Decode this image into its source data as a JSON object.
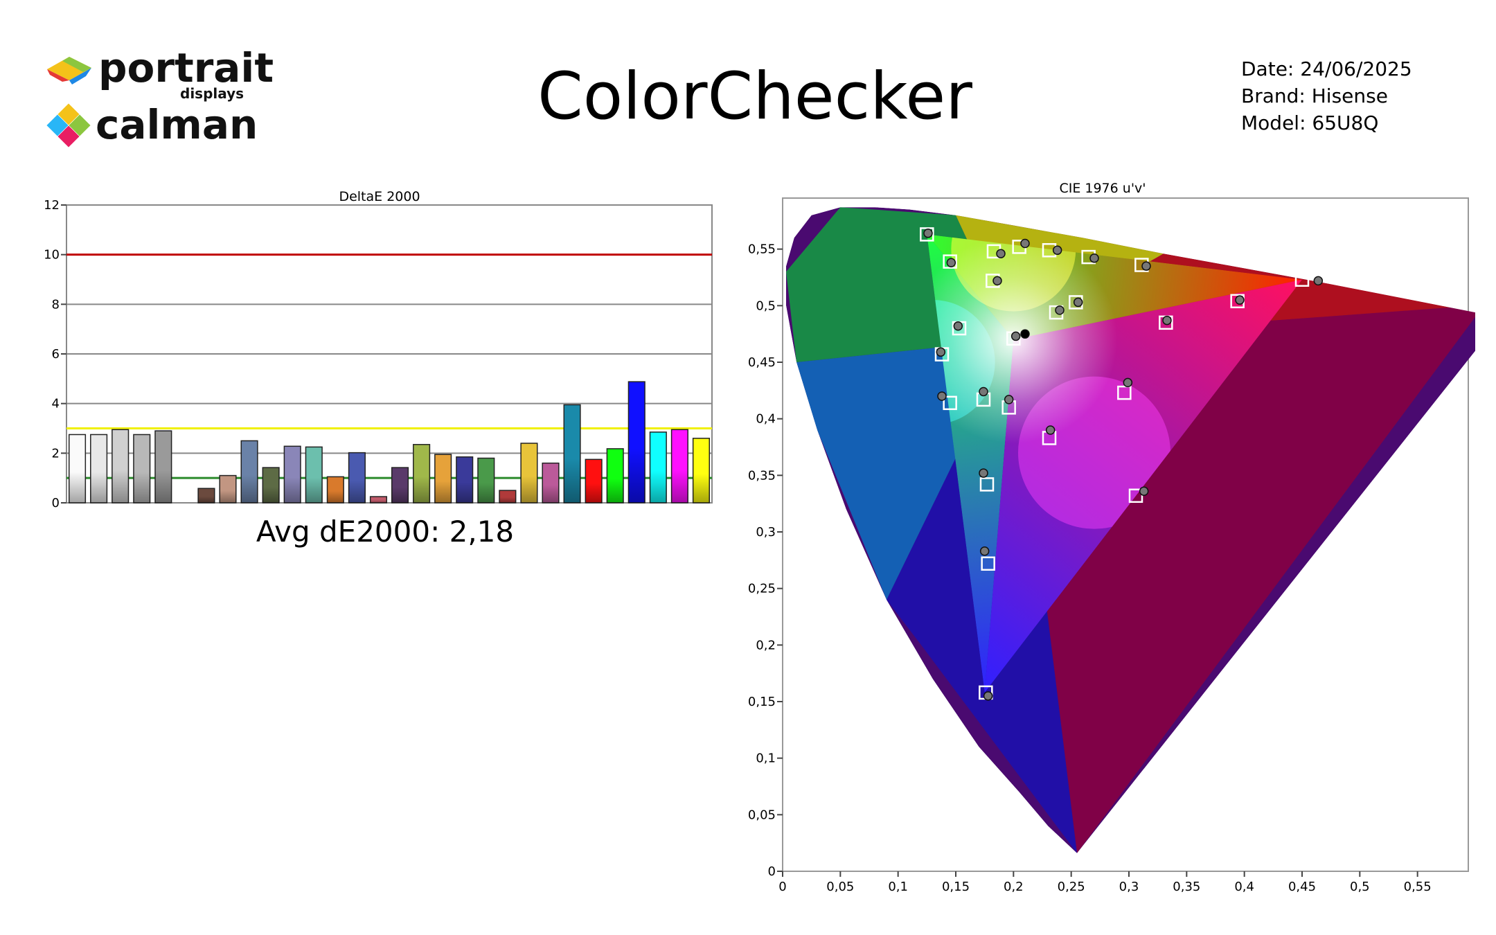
{
  "header": {
    "brand_line1": "portrait",
    "brand_line1_sub": "displays",
    "brand_line2": "calman",
    "title": "ColorChecker",
    "date": "Date: 24/06/2025",
    "brand": "Brand: Hisense",
    "model": "Model: 65U8Q"
  },
  "chart_data": [
    {
      "type": "bar",
      "title": "DeltaE 2000",
      "ylim": [
        0,
        12
      ],
      "yticks": [
        0,
        2,
        4,
        6,
        8,
        10,
        12
      ],
      "ytick_labels": [
        "0",
        "2",
        "4",
        "6",
        "8",
        "10",
        "12"
      ],
      "reference_lines": [
        {
          "value": 10,
          "color": "#c00000"
        },
        {
          "value": 3,
          "color": "#f0f000"
        },
        {
          "value": 1,
          "color": "#2a8a2a"
        }
      ],
      "summary": "Avg dE2000: 2,18",
      "values": [
        2.75,
        2.75,
        2.95,
        2.75,
        2.9,
        null,
        0.58,
        1.1,
        2.5,
        1.42,
        2.28,
        2.25,
        1.05,
        2.02,
        0.25,
        1.42,
        2.35,
        1.95,
        1.85,
        1.8,
        0.5,
        2.4,
        1.6,
        3.95,
        1.75,
        2.18,
        4.88,
        2.85,
        2.95,
        2.6
      ],
      "colors": [
        "#fafafa",
        "#e8e8e8",
        "#d0d0d0",
        "#b8b8b8",
        "#9a9a9a",
        null,
        "#6b4a3e",
        "#c29682",
        "#6a82a8",
        "#5d6b45",
        "#8a86b8",
        "#6cbfad",
        "#d97a2c",
        "#4a5ab0",
        "#c05a6a",
        "#5a3a6a",
        "#a0b84a",
        "#e6a23a",
        "#3a3a9a",
        "#4a9a4a",
        "#b03a3a",
        "#e8c43a",
        "#bb5a9a",
        "#1a8aaa",
        "#ff1010",
        "#10ff10",
        "#1010ff",
        "#10ffff",
        "#ff10ff",
        "#ffff10"
      ]
    },
    {
      "type": "scatter",
      "title": "CIE 1976 u'v'",
      "xlim": [
        0,
        0.6
      ],
      "ylim": [
        0,
        0.6
      ],
      "xticks": [
        0,
        0.05,
        0.1,
        0.15,
        0.2,
        0.25,
        0.3,
        0.35,
        0.4,
        0.45,
        0.5,
        0.55
      ],
      "xtick_labels": [
        "0",
        "0,05",
        "0,1",
        "0,15",
        "0,2",
        "0,25",
        "0,3",
        "0,35",
        "0,4",
        "0,45",
        "0,5",
        "0,55"
      ],
      "yticks": [
        0,
        0.05,
        0.1,
        0.15,
        0.2,
        0.25,
        0.3,
        0.35,
        0.4,
        0.45,
        0.5,
        0.55
      ],
      "ytick_labels": [
        "0",
        "0,05",
        "0,1",
        "0,15",
        "0,2",
        "0,25",
        "0,3",
        "0,35",
        "0,4",
        "0,45",
        "0,5",
        "0,55"
      ],
      "gamut": {
        "red": [
          0.45,
          0.523
        ],
        "green": [
          0.125,
          0.563
        ],
        "blue": [
          0.175,
          0.158
        ]
      },
      "targets": [
        [
          0.125,
          0.563
        ],
        [
          0.145,
          0.539
        ],
        [
          0.183,
          0.548
        ],
        [
          0.205,
          0.552
        ],
        [
          0.231,
          0.549
        ],
        [
          0.265,
          0.543
        ],
        [
          0.311,
          0.536
        ],
        [
          0.45,
          0.523
        ],
        [
          0.182,
          0.522
        ],
        [
          0.153,
          0.48
        ],
        [
          0.138,
          0.457
        ],
        [
          0.237,
          0.494
        ],
        [
          0.254,
          0.503
        ],
        [
          0.394,
          0.504
        ],
        [
          0.332,
          0.485
        ],
        [
          0.2,
          0.471
        ],
        [
          0.145,
          0.414
        ],
        [
          0.174,
          0.417
        ],
        [
          0.196,
          0.41
        ],
        [
          0.231,
          0.383
        ],
        [
          0.296,
          0.423
        ],
        [
          0.177,
          0.342
        ],
        [
          0.306,
          0.332
        ],
        [
          0.178,
          0.272
        ],
        [
          0.176,
          0.158
        ]
      ],
      "measured": [
        [
          0.126,
          0.564
        ],
        [
          0.146,
          0.538
        ],
        [
          0.189,
          0.546
        ],
        [
          0.21,
          0.555
        ],
        [
          0.238,
          0.549
        ],
        [
          0.27,
          0.542
        ],
        [
          0.315,
          0.535
        ],
        [
          0.464,
          0.522
        ],
        [
          0.186,
          0.522
        ],
        [
          0.152,
          0.482
        ],
        [
          0.137,
          0.459
        ],
        [
          0.24,
          0.496
        ],
        [
          0.256,
          0.503
        ],
        [
          0.396,
          0.505
        ],
        [
          0.333,
          0.487
        ],
        [
          0.202,
          0.473
        ],
        [
          0.138,
          0.42
        ],
        [
          0.174,
          0.424
        ],
        [
          0.196,
          0.417
        ],
        [
          0.232,
          0.39
        ],
        [
          0.299,
          0.432
        ],
        [
          0.174,
          0.352
        ],
        [
          0.313,
          0.336
        ],
        [
          0.175,
          0.283
        ],
        [
          0.178,
          0.155
        ],
        [
          0.21,
          0.475
        ]
      ]
    }
  ]
}
